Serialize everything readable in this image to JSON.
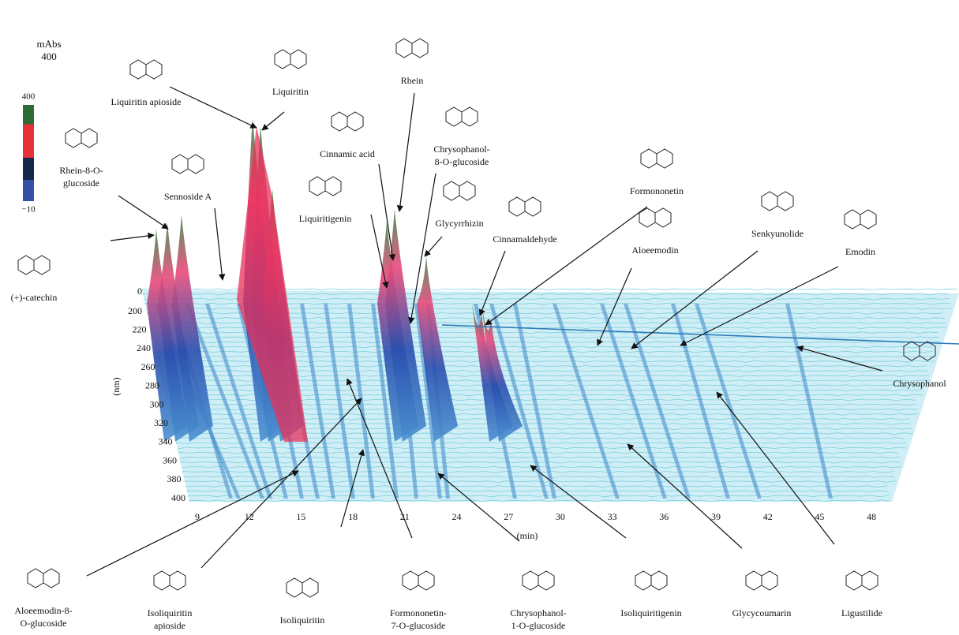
{
  "figure": {
    "scale": {
      "unit": "mAbs",
      "max": "400",
      "bar_top": "400",
      "bar_bottom": "−10"
    },
    "x_axis": {
      "label": "(min)",
      "ticks": [
        9,
        12,
        15,
        18,
        21,
        24,
        27,
        30,
        33,
        36,
        39,
        42,
        45,
        48
      ]
    },
    "y_axis": {
      "label": "(nm)",
      "ticks": [
        0,
        200,
        220,
        240,
        260,
        280,
        300,
        320,
        340,
        360,
        380,
        400
      ]
    },
    "compounds": [
      {
        "lines": [
          "Liquiritin apioside"
        ]
      },
      {
        "lines": [
          "Liquiritin"
        ]
      },
      {
        "lines": [
          "Rhein"
        ]
      },
      {
        "lines": [
          "Cinnamic acid"
        ]
      },
      {
        "lines": [
          "Chrysophanol-",
          "8-O-glucoside"
        ]
      },
      {
        "lines": [
          "Formononetin"
        ]
      },
      {
        "lines": [
          "Glycyrrhizin"
        ]
      },
      {
        "lines": [
          "Cinnamaldehyde"
        ]
      },
      {
        "lines": [
          "Liquiritigenin"
        ]
      },
      {
        "lines": [
          "Rhein-8-O-",
          "glucoside"
        ]
      },
      {
        "lines": [
          "Sennoside A"
        ]
      },
      {
        "lines": [
          "(+)-catechin"
        ]
      },
      {
        "lines": [
          "Aloeemodin"
        ]
      },
      {
        "lines": [
          "Senkyunolide"
        ]
      },
      {
        "lines": [
          "Emodin"
        ]
      },
      {
        "lines": [
          "Chrysophanol"
        ]
      },
      {
        "lines": [
          "Aloeemodin-8-",
          "O-glucoside"
        ]
      },
      {
        "lines": [
          "Isoliquiritin",
          "apioside"
        ]
      },
      {
        "lines": [
          "Isoliquiritin"
        ]
      },
      {
        "lines": [
          "Formononetin-",
          "7-O-glucoside"
        ]
      },
      {
        "lines": [
          "Chrysophanol-",
          "1-O-glucoside"
        ]
      },
      {
        "lines": [
          "Isoliquiritigenin"
        ]
      },
      {
        "lines": [
          "Glycycoumarin"
        ]
      },
      {
        "lines": [
          "Ligustilide"
        ]
      }
    ]
  }
}
